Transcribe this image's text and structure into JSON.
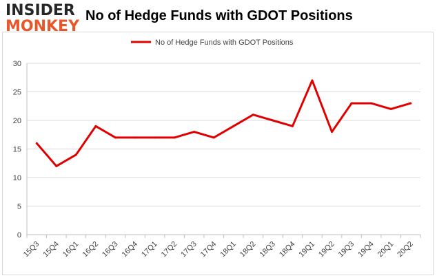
{
  "logo": {
    "line1": "INSIDER",
    "line2": "MONKEY"
  },
  "chart_data": {
    "type": "line",
    "title": "No of Hedge Funds with GDOT Positions",
    "categories": [
      "15Q3",
      "15Q4",
      "16Q1",
      "16Q2",
      "16Q3",
      "16Q4",
      "17Q1",
      "17Q2",
      "17Q3",
      "17Q4",
      "18Q1",
      "18Q2",
      "18Q3",
      "18Q4",
      "19Q1",
      "19Q2",
      "19Q3",
      "19Q4",
      "20Q1",
      "20Q2"
    ],
    "series": [
      {
        "name": "No of Hedge Funds with GDOT Positions",
        "values": [
          16,
          12,
          14,
          19,
          17,
          17,
          17,
          17,
          18,
          17,
          19,
          21,
          20,
          19,
          27,
          18,
          23,
          23,
          22,
          23
        ],
        "color": "#e00000"
      }
    ],
    "ylim": [
      0,
      30
    ],
    "yticks": [
      0,
      5,
      10,
      15,
      20,
      25,
      30
    ],
    "grid": "horizontal",
    "legend": "top-center",
    "xlabel": "",
    "ylabel": ""
  }
}
